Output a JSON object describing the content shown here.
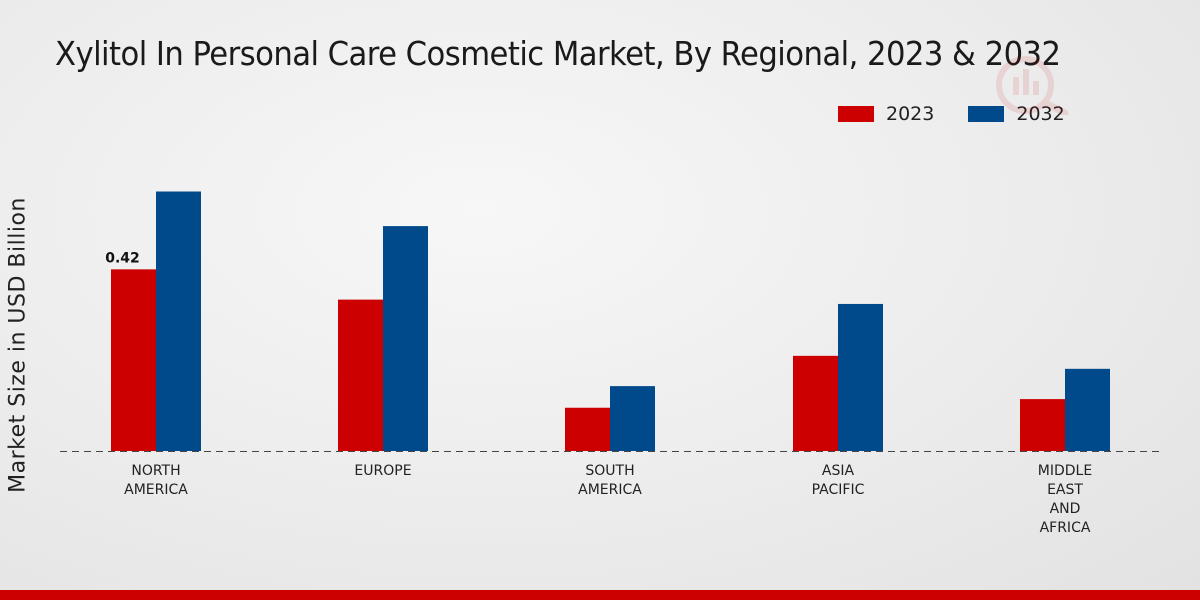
{
  "chart_data": {
    "type": "bar",
    "title": "Xylitol In Personal Care Cosmetic Market, By Regional, 2023 & 2032",
    "xlabel": "",
    "ylabel": "Market Size in USD Billion",
    "categories": [
      [
        "NORTH",
        "AMERICA"
      ],
      [
        "EUROPE"
      ],
      [
        "SOUTH",
        "AMERICA"
      ],
      [
        "ASIA",
        "PACIFIC"
      ],
      [
        "MIDDLE",
        "EAST",
        "AND",
        "AFRICA"
      ]
    ],
    "series": [
      {
        "name": "2023",
        "color": "#cc0000",
        "values": [
          0.42,
          0.35,
          0.1,
          0.22,
          0.12
        ]
      },
      {
        "name": "2032",
        "color": "#004a8c",
        "values": [
          0.6,
          0.52,
          0.15,
          0.34,
          0.19
        ]
      }
    ],
    "data_labels": [
      {
        "series": 0,
        "index": 0,
        "text": "0.42"
      }
    ],
    "ylim": [
      0,
      0.8
    ],
    "grid": false,
    "legend_position": "top-right"
  }
}
